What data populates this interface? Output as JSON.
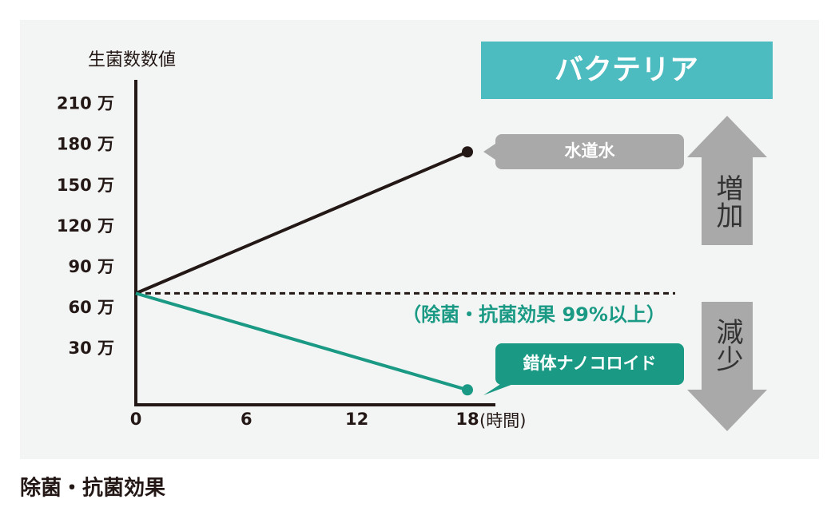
{
  "chart_data": {
    "type": "line",
    "header": "バクテリア",
    "ylabel": "生菌数数値",
    "xlabel": "(時間)",
    "x": [
      0,
      18
    ],
    "xlim": [
      0,
      18
    ],
    "xticks": [
      0,
      6,
      12,
      18
    ],
    "ylim": [
      -11,
      228
    ],
    "yticks": [
      {
        "value": 30,
        "label": "30 万"
      },
      {
        "value": 60,
        "label": "60 万"
      },
      {
        "value": 90,
        "label": "90 万"
      },
      {
        "value": 120,
        "label": "120 万"
      },
      {
        "value": 150,
        "label": "150 万"
      },
      {
        "value": 180,
        "label": "180 万"
      },
      {
        "value": 210,
        "label": "210 万"
      }
    ],
    "series": [
      {
        "name": "水道水",
        "color": "#231815",
        "label_color": "#a8a9a8",
        "values": [
          71,
          175
        ]
      },
      {
        "name": "錯体ナノコロイド",
        "color": "#1a9a84",
        "label_color": "#1a9a84",
        "values": [
          71,
          0
        ]
      }
    ],
    "reference_line": 71,
    "annotation": "（除菌・抗菌効果 99%以上）",
    "up_label": "増加",
    "down_label": "減少",
    "caption": "除菌・抗菌効果"
  }
}
